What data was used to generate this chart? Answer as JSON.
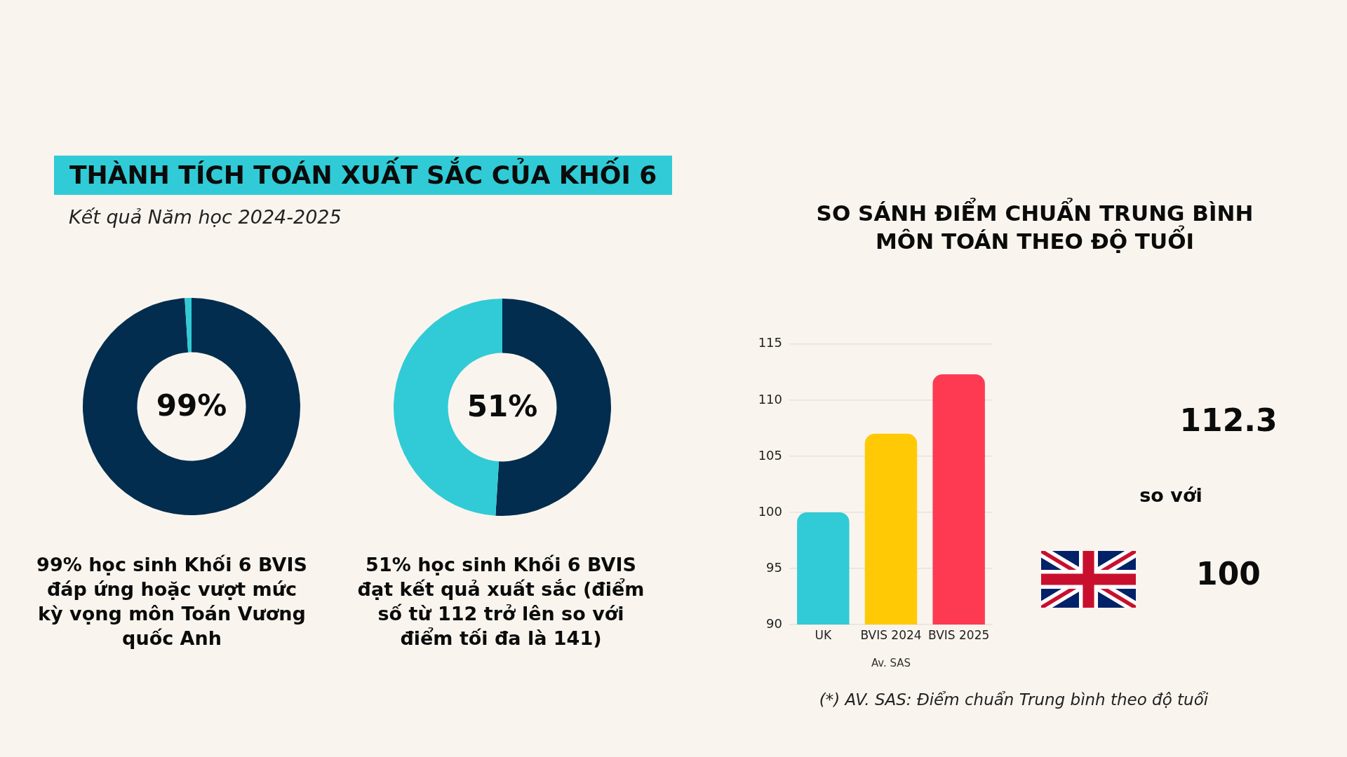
{
  "chart_data": [
    {
      "type": "donut",
      "title": "THÀNH TÍCH TOÁN XUẤT SẮC CỦA KHỐI 6",
      "subtitle": "Kết quả Năm học 2024-2025",
      "categories": [
        null,
        null
      ],
      "values": [
        99,
        1
      ],
      "colors": [
        "#022d4e",
        "#30cbd6"
      ],
      "value_labels": [
        "99%",
        null
      ],
      "annotations": [
        "99% học sinh Khối 6 BVIS đáp ứng hoặc vượt mức kỳ vọng môn Toán Vương quốc Anh"
      ]
    },
    {
      "type": "donut",
      "categories": [
        null,
        null
      ],
      "values": [
        51,
        49
      ],
      "colors": [
        "#022d4e",
        "#30cbd6"
      ],
      "value_labels": [
        "51%",
        null
      ],
      "annotations": [
        "51% học sinh Khối 6 BVIS đạt kết quả xuất sắc (điểm số từ 112 trở lên so với điểm tối đa là 141)"
      ]
    },
    {
      "type": "bar",
      "title": "SO SÁNH ĐIỂM CHUẨN TRUNG BÌNH MÔN TOÁN THEO ĐỘ TUỔI",
      "categories": [
        "UK",
        "BVIS 2024",
        "BVIS 2025"
      ],
      "values": [
        100,
        107,
        112.3
      ],
      "colors": [
        "#30cbd6",
        "#ffca05",
        "#fe3a52"
      ],
      "xlabel": "Av. SAS",
      "ylim": [
        90,
        115
      ],
      "yticks": [
        90,
        95,
        100,
        105,
        110,
        115
      ],
      "grid": "y",
      "annotations": [
        "112.3",
        "so với",
        "100",
        "(*) AV. SAS: Điểm chuẩn Trung bình theo độ tuổi"
      ]
    }
  ]
}
